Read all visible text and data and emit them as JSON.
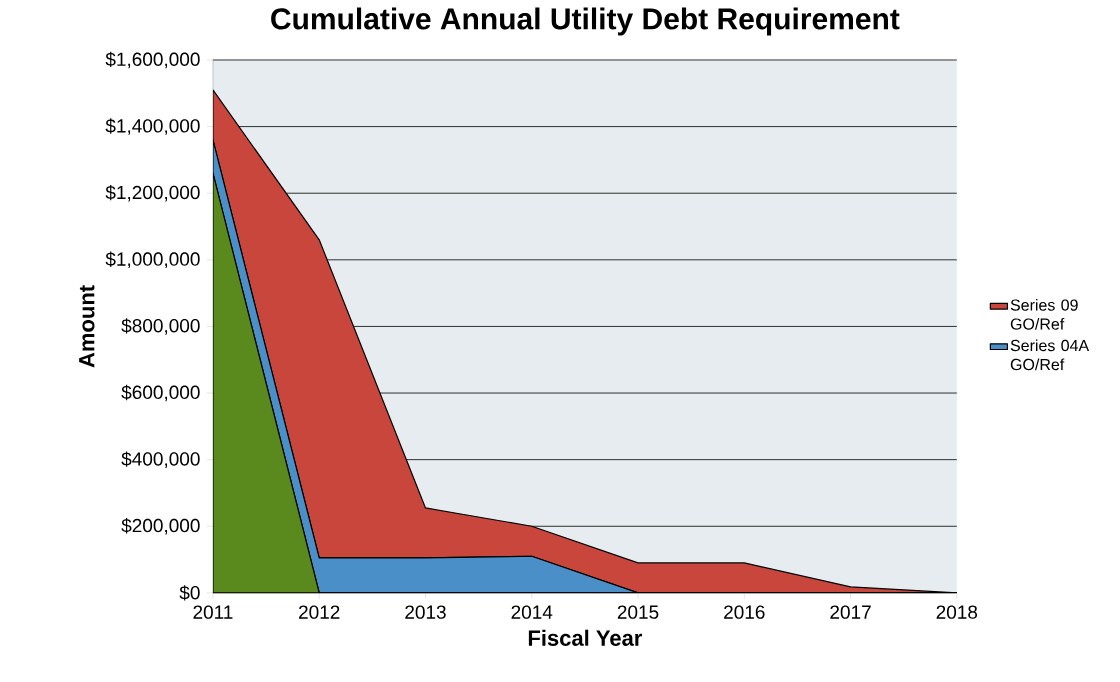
{
  "chart_data": {
    "type": "area",
    "stacked": true,
    "title": "Cumulative Annual Utility Debt Requirement",
    "xlabel": "Fiscal Year",
    "ylabel": "Amount",
    "x": [
      2011,
      2012,
      2013,
      2014,
      2015,
      2016,
      2017,
      2018
    ],
    "series": [
      {
        "color": "#5a8a1e",
        "values": [
          1260000,
          0,
          0,
          0,
          0,
          0,
          0,
          0
        ]
      },
      {
        "name": "Series 04A GO/Ref",
        "color": "#4a8fc8",
        "values": [
          100000,
          105000,
          105000,
          110000,
          0,
          0,
          0,
          0
        ]
      },
      {
        "name": "Series 09 GO/Ref",
        "color": "#c8463c",
        "values": [
          150000,
          955000,
          150000,
          90000,
          90000,
          90000,
          18000,
          0
        ]
      }
    ],
    "xlim": [
      2011,
      2018
    ],
    "xticks": [
      2011,
      2012,
      2013,
      2014,
      2015,
      2016,
      2017,
      2018
    ],
    "ylim": [
      0,
      1600000
    ],
    "yticks": [
      {
        "value": 0,
        "label": "$0"
      },
      {
        "value": 200000,
        "label": "$200,000"
      },
      {
        "value": 400000,
        "label": "$400,000"
      },
      {
        "value": 600000,
        "label": "$600,000"
      },
      {
        "value": 800000,
        "label": "$800,000"
      },
      {
        "value": 1000000,
        "label": "$1,000,000"
      },
      {
        "value": 1200000,
        "label": "$1,200,000"
      },
      {
        "value": 1400000,
        "label": "$1,400,000"
      },
      {
        "value": 1600000,
        "label": "$1,600,000"
      }
    ],
    "grid": "y",
    "legend": "right"
  }
}
